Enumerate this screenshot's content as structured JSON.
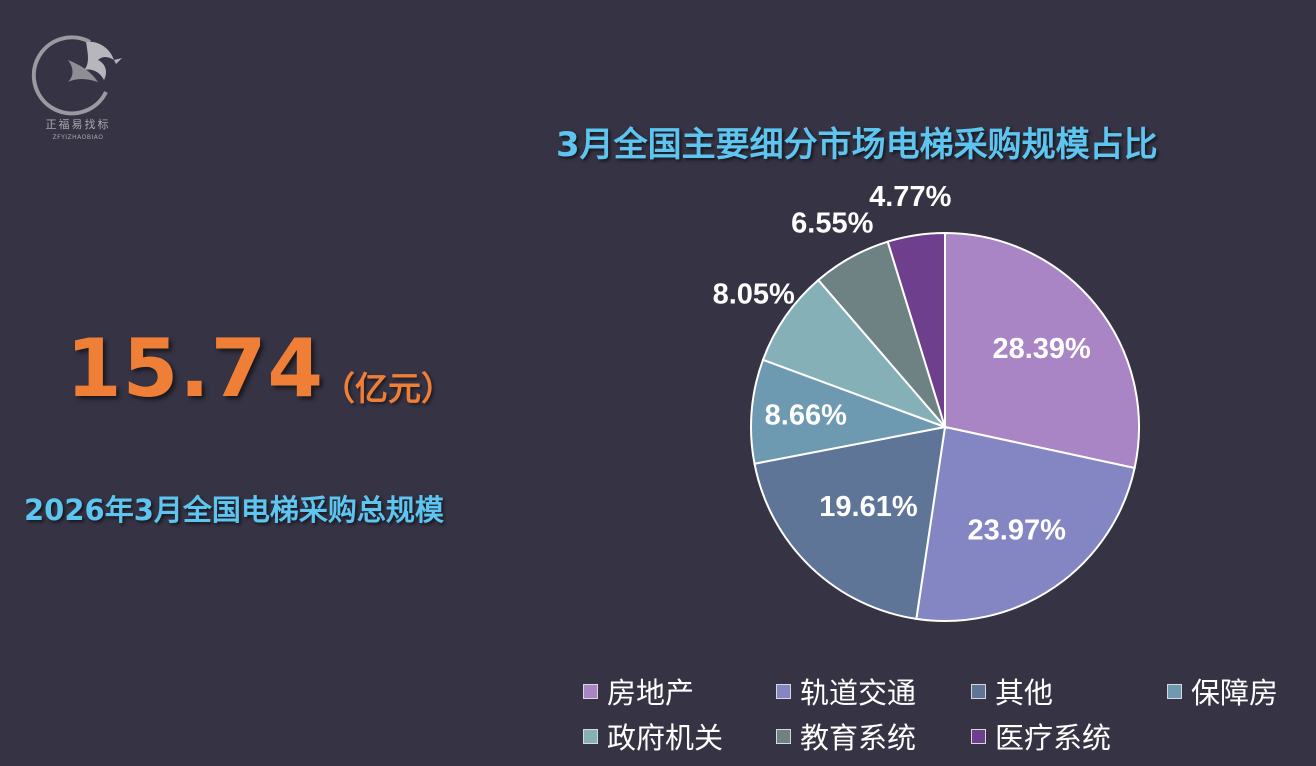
{
  "logo": {
    "brand_cn": "正福易找标",
    "brand_en": "ZFYIZHAOBIAO",
    "icon": "eagle-logo-icon"
  },
  "summary": {
    "value": "15.74",
    "unit": "（亿元）",
    "label": "2026年3月全国电梯采购总规模"
  },
  "chart_data": {
    "type": "pie",
    "title": "3月全国主要细分市场电梯采购规模占比",
    "legend_position": "bottom",
    "slices": [
      {
        "name": "房地产",
        "value": 28.39,
        "label": "28.39%",
        "color": "#a985c5"
      },
      {
        "name": "轨道交通",
        "value": 23.97,
        "label": "23.97%",
        "color": "#8486c4"
      },
      {
        "name": "其他",
        "value": 19.61,
        "label": "19.61%",
        "color": "#5e7598"
      },
      {
        "name": "保障房",
        "value": 8.66,
        "label": "8.66%",
        "color": "#6d9ab0"
      },
      {
        "name": "政府机关",
        "value": 8.05,
        "label": "8.05%",
        "color": "#86b0b8"
      },
      {
        "name": "教育系统",
        "value": 6.55,
        "label": "6.55%",
        "color": "#6e8283"
      },
      {
        "name": "医疗系统",
        "value": 4.77,
        "label": "4.77%",
        "color": "#6e3f8c"
      }
    ]
  }
}
